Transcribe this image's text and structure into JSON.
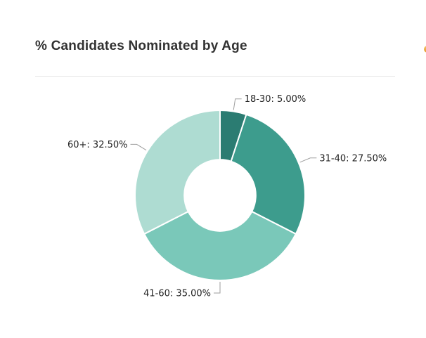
{
  "header": {
    "title": "% Candidates Nominated by Age"
  },
  "floating_button": {
    "color_top": "#f5c368",
    "color_bottom": "#e6992c"
  },
  "styles": {
    "background": "#ffffff",
    "title_color": "#323232",
    "divider_color": "#e8e8e8"
  },
  "chart_data": {
    "type": "pie",
    "subtype": "donut",
    "title": "% Candidates Nominated by Age",
    "unit": "%",
    "direction": "clockwise",
    "start_angle_deg": 0,
    "inner_radius_ratio": 0.42,
    "legend": "none",
    "categories": [
      "18-30",
      "31-40",
      "41-60",
      "60+"
    ],
    "values": [
      5.0,
      27.5,
      35.0,
      32.5
    ],
    "labels": [
      "18-30: 5.00%",
      "31-40: 27.50%",
      "41-60: 35.00%",
      "60+: 32.50%"
    ],
    "colors": [
      "#2b7c72",
      "#3d9c8d",
      "#7ac8b9",
      "#aedcd2"
    ],
    "slice_border_color": "#ffffff",
    "label_connector_color": "#9e9e9e",
    "label_text_color": "#222222"
  }
}
